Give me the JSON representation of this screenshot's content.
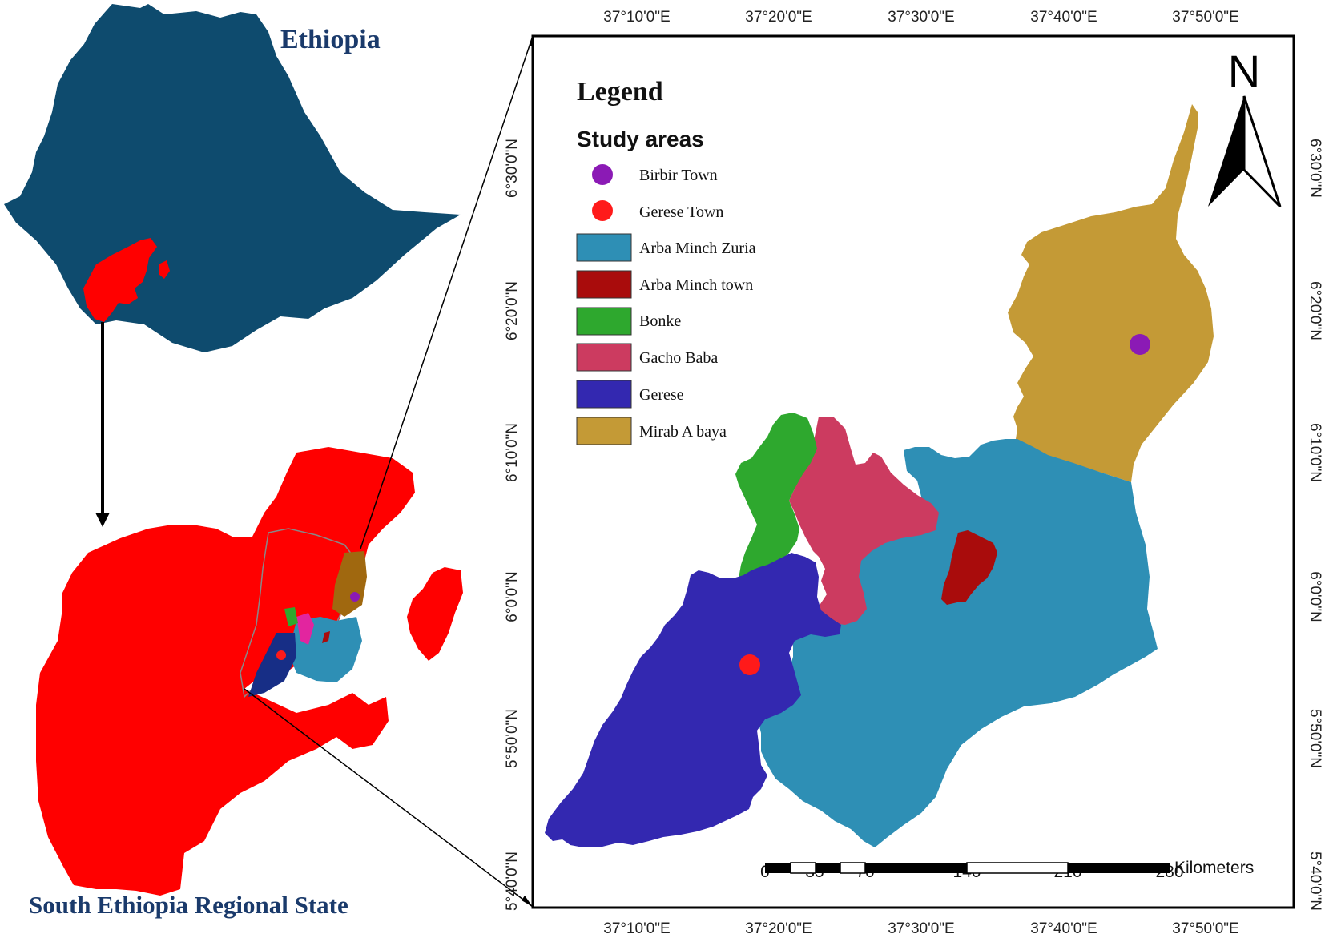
{
  "titles": {
    "country": "Ethiopia",
    "region": "South Ethiopia Regional State"
  },
  "legend": {
    "title": "Legend",
    "subtitle": "Study areas",
    "items": [
      {
        "label": "Birbir Town",
        "kind": "point",
        "color": "#8b1ab5"
      },
      {
        "label": "Gerese Town",
        "kind": "point",
        "color": "#ff1a1a"
      },
      {
        "label": "Arba Minch Zuria",
        "kind": "area",
        "color": "#2e8fb5"
      },
      {
        "label": "Arba Minch town",
        "kind": "area",
        "color": "#a90c0c"
      },
      {
        "label": "Bonke",
        "kind": "area",
        "color": "#2ea82e"
      },
      {
        "label": "Gacho Baba",
        "kind": "area",
        "color": "#cc3b60"
      },
      {
        "label": "Gerese",
        "kind": "area",
        "color": "#3328b0"
      },
      {
        "label": "Mirab A baya",
        "kind": "area",
        "color": "#c49a36"
      }
    ]
  },
  "graticule": {
    "longitudes": [
      "37°10'0\"E",
      "37°20'0\"E",
      "37°30'0\"E",
      "37°40'0\"E",
      "37°50'0\"E"
    ],
    "latitudes": [
      "6°30'0\"N",
      "6°20'0\"N",
      "6°10'0\"N",
      "6°0'0\"N",
      "5°50'0\"N",
      "5°40'0\"N"
    ]
  },
  "north_arrow": {
    "label": "N"
  },
  "scale_bar": {
    "ticks": [
      "0",
      "35",
      "70",
      "140",
      "210",
      "280"
    ],
    "unit": "Kilometers"
  },
  "colors": {
    "ethiopia": "#0e4b6e",
    "region": "#ff0000",
    "title": "#1a3a6b"
  }
}
